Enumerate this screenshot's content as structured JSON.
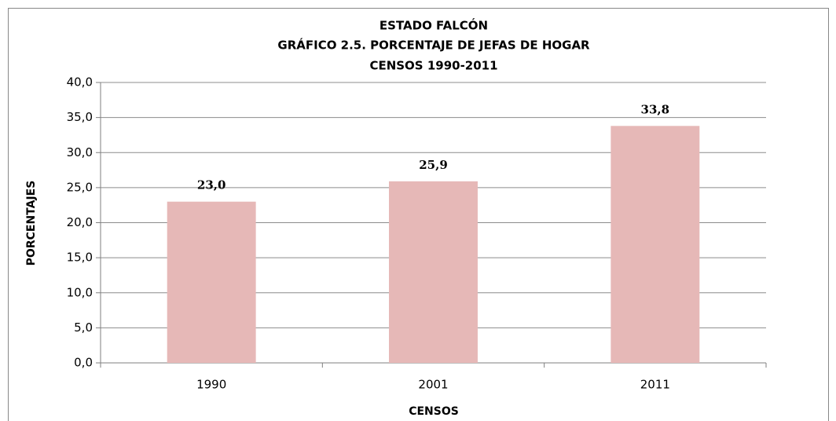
{
  "chart_data": {
    "type": "bar",
    "title": [
      "ESTADO  FALCÓN",
      "GRÁFICO 2.5. PORCENTAJE DE JEFAS DE HOGAR",
      "CENSOS 1990-2011"
    ],
    "x_label": "CENSOS",
    "y_label": "PORCENTAJES",
    "categories": [
      "1990",
      "2001",
      "2011"
    ],
    "values": [
      23.0,
      25.9,
      33.8
    ],
    "value_labels": [
      "23,0",
      "25,9",
      "33,8"
    ],
    "color": "#e6b8b7",
    "ylim": [
      0,
      40
    ],
    "yticks": [
      {
        "value": 0,
        "label": "0,0"
      },
      {
        "value": 5,
        "label": "5,0"
      },
      {
        "value": 10,
        "label": "10,0"
      },
      {
        "value": 15,
        "label": "15,0"
      },
      {
        "value": 20,
        "label": "20,0"
      },
      {
        "value": 25,
        "label": "25,0"
      },
      {
        "value": 30,
        "label": "30,0"
      },
      {
        "value": 35,
        "label": "35,0"
      },
      {
        "value": 40,
        "label": "40,0"
      }
    ],
    "grid": true
  }
}
